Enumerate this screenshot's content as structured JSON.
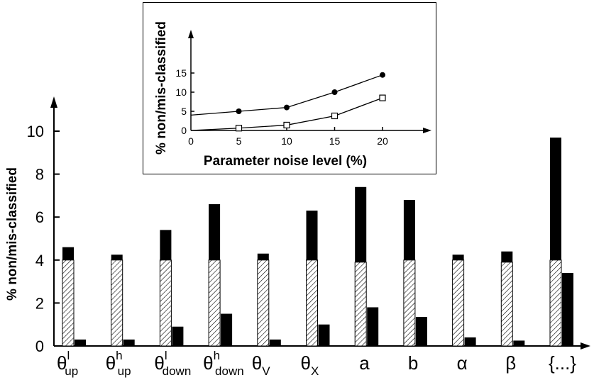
{
  "chart_data": [
    {
      "type": "bar",
      "ylabel": "% non/mis-classified",
      "ylim": [
        0,
        10
      ],
      "yticks": [
        0,
        2,
        4,
        6,
        8,
        10
      ],
      "categories": [
        {
          "base": "θ",
          "sub": "up",
          "sup": "l"
        },
        {
          "base": "θ",
          "sub": "up",
          "sup": "h"
        },
        {
          "base": "θ",
          "sub": "down",
          "sup": "l"
        },
        {
          "base": "θ",
          "sub": "down",
          "sup": "h"
        },
        {
          "base": "θ",
          "sub": "V",
          "sup": ""
        },
        {
          "base": "θ",
          "sub": "X",
          "sup": ""
        },
        {
          "base": "a",
          "sub": "",
          "sup": ""
        },
        {
          "base": "b",
          "sub": "",
          "sup": ""
        },
        {
          "base": "α",
          "sub": "",
          "sup": ""
        },
        {
          "base": "β",
          "sub": "",
          "sup": ""
        },
        {
          "base": "{...}",
          "sub": "",
          "sup": ""
        }
      ],
      "series": [
        {
          "pattern": "hatched",
          "values": [
            4.0,
            4.0,
            4.0,
            4.0,
            4.0,
            4.0,
            3.9,
            4.0,
            4.0,
            3.9,
            4.0
          ]
        },
        {
          "pattern": "solid-stacked",
          "values": [
            4.6,
            4.25,
            5.4,
            6.6,
            4.3,
            6.3,
            7.4,
            6.8,
            4.25,
            4.4,
            9.7
          ]
        },
        {
          "pattern": "solid",
          "values": [
            0.3,
            0.3,
            0.9,
            1.5,
            0.3,
            1.0,
            1.8,
            1.35,
            0.4,
            0.25,
            3.4
          ]
        }
      ]
    },
    {
      "type": "line",
      "xlabel": "Parameter noise level (%)",
      "ylabel": "% non/mis-classified",
      "xlim": [
        0,
        22
      ],
      "ylim": [
        0,
        16
      ],
      "xticks": [
        0,
        5,
        10,
        15,
        20
      ],
      "yticks": [
        0,
        5,
        10,
        15
      ],
      "series": [
        {
          "marker": "filled-circle",
          "x": [
            0,
            5,
            10,
            15,
            20
          ],
          "y": [
            4.0,
            5.0,
            6.0,
            10.0,
            14.5
          ]
        },
        {
          "marker": "open-square",
          "x": [
            0,
            5,
            10,
            15,
            20
          ],
          "y": [
            0.0,
            0.6,
            1.4,
            3.8,
            8.5
          ]
        }
      ]
    }
  ]
}
